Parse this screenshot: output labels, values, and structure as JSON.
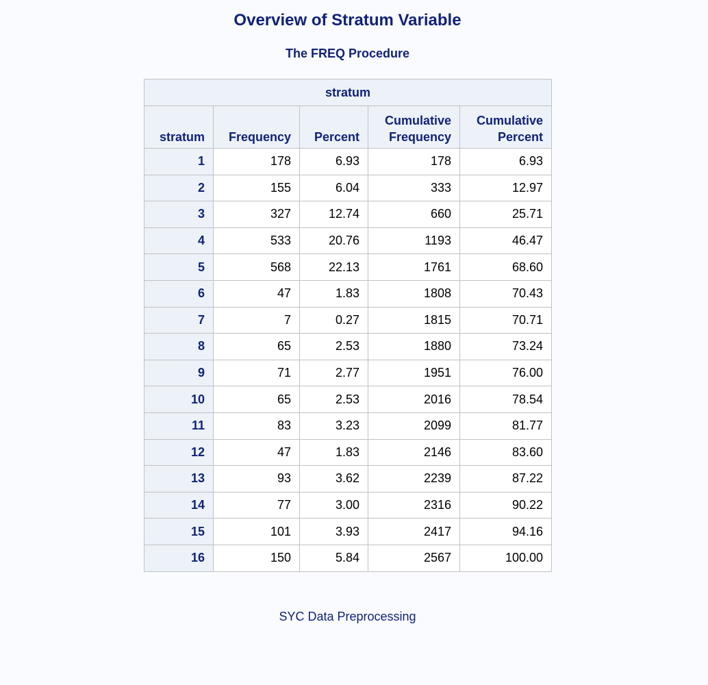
{
  "title": "Overview of Stratum Variable",
  "subtitle": "The FREQ Procedure",
  "table": {
    "spanner": "stratum",
    "headers": {
      "stratum": "stratum",
      "frequency": "Frequency",
      "percent": "Percent",
      "cum_frequency_line1": "Cumulative",
      "cum_frequency_line2": "Frequency",
      "cum_percent_line1": "Cumulative",
      "cum_percent_line2": "Percent"
    },
    "rows": [
      {
        "stratum": "1",
        "frequency": "178",
        "percent": "6.93",
        "cum_frequency": "178",
        "cum_percent": "6.93"
      },
      {
        "stratum": "2",
        "frequency": "155",
        "percent": "6.04",
        "cum_frequency": "333",
        "cum_percent": "12.97"
      },
      {
        "stratum": "3",
        "frequency": "327",
        "percent": "12.74",
        "cum_frequency": "660",
        "cum_percent": "25.71"
      },
      {
        "stratum": "4",
        "frequency": "533",
        "percent": "20.76",
        "cum_frequency": "1193",
        "cum_percent": "46.47"
      },
      {
        "stratum": "5",
        "frequency": "568",
        "percent": "22.13",
        "cum_frequency": "1761",
        "cum_percent": "68.60"
      },
      {
        "stratum": "6",
        "frequency": "47",
        "percent": "1.83",
        "cum_frequency": "1808",
        "cum_percent": "70.43"
      },
      {
        "stratum": "7",
        "frequency": "7",
        "percent": "0.27",
        "cum_frequency": "1815",
        "cum_percent": "70.71"
      },
      {
        "stratum": "8",
        "frequency": "65",
        "percent": "2.53",
        "cum_frequency": "1880",
        "cum_percent": "73.24"
      },
      {
        "stratum": "9",
        "frequency": "71",
        "percent": "2.77",
        "cum_frequency": "1951",
        "cum_percent": "76.00"
      },
      {
        "stratum": "10",
        "frequency": "65",
        "percent": "2.53",
        "cum_frequency": "2016",
        "cum_percent": "78.54"
      },
      {
        "stratum": "11",
        "frequency": "83",
        "percent": "3.23",
        "cum_frequency": "2099",
        "cum_percent": "81.77"
      },
      {
        "stratum": "12",
        "frequency": "47",
        "percent": "1.83",
        "cum_frequency": "2146",
        "cum_percent": "83.60"
      },
      {
        "stratum": "13",
        "frequency": "93",
        "percent": "3.62",
        "cum_frequency": "2239",
        "cum_percent": "87.22"
      },
      {
        "stratum": "14",
        "frequency": "77",
        "percent": "3.00",
        "cum_frequency": "2316",
        "cum_percent": "90.22"
      },
      {
        "stratum": "15",
        "frequency": "101",
        "percent": "3.93",
        "cum_frequency": "2417",
        "cum_percent": "94.16"
      },
      {
        "stratum": "16",
        "frequency": "150",
        "percent": "5.84",
        "cum_frequency": "2567",
        "cum_percent": "100.00"
      }
    ]
  },
  "footer": "SYC Data Preprocessing",
  "colors": {
    "background": "#fafbfe",
    "header_text": "#112277",
    "header_fill": "#edf2f9",
    "border": "#c1c1c1"
  }
}
